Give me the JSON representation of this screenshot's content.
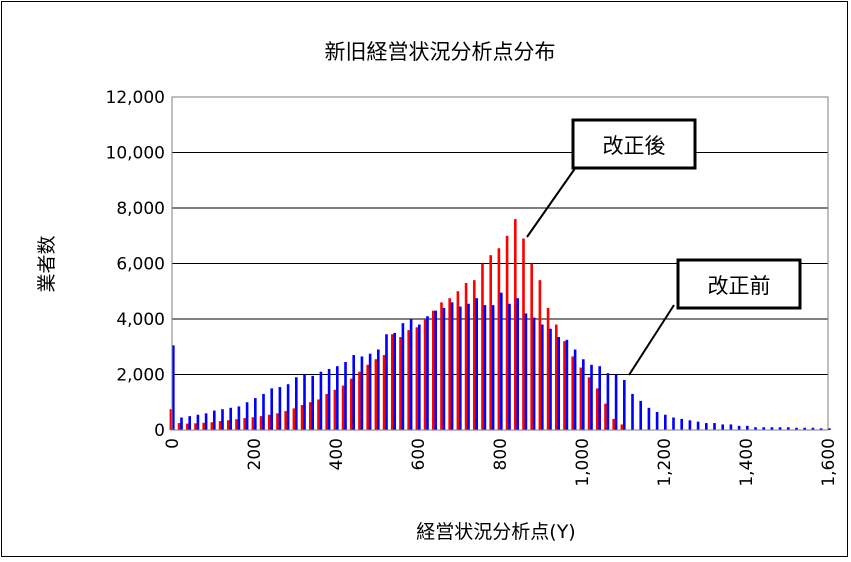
{
  "chart_data": {
    "type": "bar",
    "title": "新旧経営状況分析点分布",
    "xlabel": "経営状況分析点(Y)",
    "ylabel": "業者数",
    "xlim": [
      0,
      1600
    ],
    "ylim": [
      0,
      12000
    ],
    "bin_width": 20,
    "x_ticks": [
      "0",
      "200",
      "400",
      "600",
      "800",
      "1,000",
      "1,200",
      "1,400",
      "1,600"
    ],
    "y_ticks": [
      "0",
      "2,000",
      "4,000",
      "6,000",
      "8,000",
      "10,000",
      "12,000"
    ],
    "grid": true,
    "annotations": [
      {
        "text": "改正後",
        "points_to": "red"
      },
      {
        "text": "改正前",
        "points_to": "blue"
      }
    ],
    "series": [
      {
        "color": "#ff0000",
        "x": [
          0,
          20,
          40,
          60,
          80,
          100,
          120,
          140,
          160,
          180,
          200,
          220,
          240,
          260,
          280,
          300,
          320,
          340,
          360,
          380,
          400,
          420,
          440,
          460,
          480,
          500,
          520,
          540,
          560,
          580,
          600,
          620,
          640,
          660,
          680,
          700,
          720,
          740,
          760,
          780,
          800,
          820,
          840,
          860,
          880,
          900,
          920,
          940,
          960,
          980,
          1000,
          1020,
          1040,
          1060,
          1080,
          1100
        ],
        "values": [
          750,
          250,
          230,
          240,
          260,
          280,
          320,
          350,
          390,
          430,
          460,
          500,
          550,
          600,
          680,
          780,
          900,
          1000,
          1100,
          1300,
          1450,
          1600,
          1850,
          2100,
          2350,
          2550,
          2700,
          3450,
          3350,
          3600,
          3700,
          4000,
          4300,
          4600,
          4750,
          5000,
          5300,
          5400,
          6000,
          6300,
          6550,
          7000,
          7600,
          6900,
          6000,
          5400,
          4400,
          3800,
          3200,
          2650,
          2250,
          1900,
          1500,
          950,
          400,
          200
        ]
      },
      {
        "color": "#0000ff",
        "x": [
          0,
          20,
          40,
          60,
          80,
          100,
          120,
          140,
          160,
          180,
          200,
          220,
          240,
          260,
          280,
          300,
          320,
          340,
          360,
          380,
          400,
          420,
          440,
          460,
          480,
          500,
          520,
          540,
          560,
          580,
          600,
          620,
          640,
          660,
          680,
          700,
          720,
          740,
          760,
          780,
          800,
          820,
          840,
          860,
          880,
          900,
          920,
          940,
          960,
          980,
          1000,
          1020,
          1040,
          1060,
          1080,
          1100,
          1120,
          1140,
          1160,
          1180,
          1200,
          1220,
          1240,
          1260,
          1280,
          1300,
          1320,
          1340,
          1360,
          1380,
          1400,
          1420,
          1440,
          1460,
          1480,
          1500,
          1520,
          1540,
          1560,
          1580,
          1600
        ],
        "values": [
          3050,
          450,
          500,
          550,
          600,
          700,
          750,
          800,
          850,
          1000,
          1150,
          1300,
          1500,
          1550,
          1650,
          1900,
          2000,
          1950,
          2100,
          2200,
          2300,
          2450,
          2700,
          2650,
          2750,
          2900,
          3450,
          3500,
          3850,
          4000,
          3800,
          4100,
          4300,
          4400,
          4600,
          4450,
          4550,
          4750,
          4500,
          4500,
          4950,
          4550,
          4750,
          4200,
          4050,
          3800,
          3650,
          3350,
          3250,
          2900,
          2550,
          2350,
          2300,
          2050,
          2000,
          1800,
          1300,
          1050,
          800,
          650,
          550,
          450,
          400,
          350,
          300,
          250,
          250,
          200,
          200,
          150,
          150,
          100,
          100,
          100,
          100,
          100,
          80,
          80,
          80,
          60,
          60
        ]
      }
    ]
  }
}
